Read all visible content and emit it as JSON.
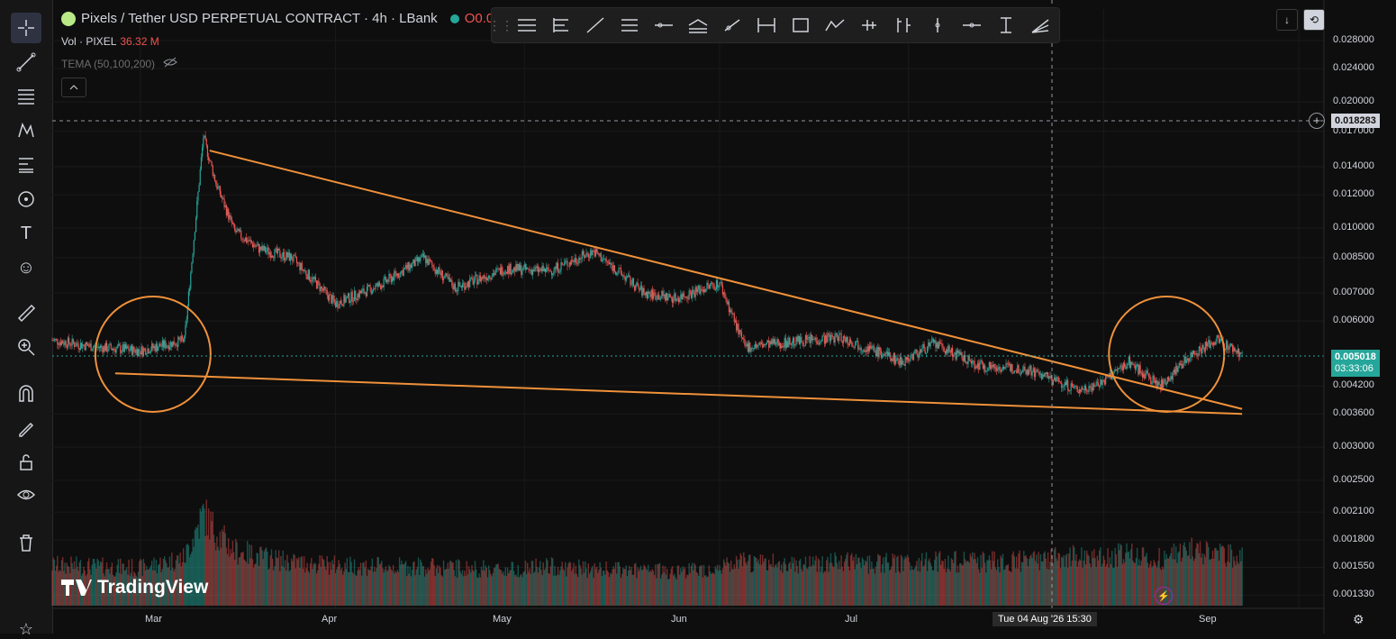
{
  "header": {
    "title": "Pixels / Tether USD PERPETUAL CONTRACT · 4h · LBank",
    "ohlc_prefix": "O0.0"
  },
  "volume_legend": {
    "label": "Vol · PIXEL",
    "value": "36.32 M"
  },
  "indicator_legend": {
    "label": "TEMA (50,100,200)"
  },
  "price_scale": {
    "ticks": [
      "0.028000",
      "0.024000",
      "0.020000",
      "0.017000",
      "0.014000",
      "0.012000",
      "0.010000",
      "0.008500",
      "0.007000",
      "0.006000",
      "0.004200",
      "0.003600",
      "0.003000",
      "0.002500",
      "0.002100",
      "0.001800",
      "0.001550",
      "0.001330"
    ],
    "horizontal_line_price": "0.018283",
    "current_price": "0.005018",
    "countdown": "03:33:06"
  },
  "time_axis": {
    "months": [
      "Mar",
      "Apr",
      "May",
      "Jun",
      "Jul",
      "Sep"
    ],
    "crosshair_date": "Tue 04 Aug '26   15:30"
  },
  "branding": {
    "watermark": "TradingView"
  },
  "colors": {
    "up": "#26a69a",
    "down": "#ef5350",
    "drawing": "#f0913a",
    "background": "#0e0e0e"
  },
  "chart_data": {
    "type": "candlestick",
    "symbol": "PIXEL/USDT",
    "interval": "4h",
    "y_scale": "log",
    "ylim": [
      0.0013,
      0.028
    ],
    "x_range": [
      "2026-02-15",
      "2026-09-05"
    ],
    "series": [
      {
        "name": "PIXEL close",
        "x": [
          "2026-02-15",
          "2026-02-22",
          "2026-03-01",
          "2026-03-08",
          "2026-03-11",
          "2026-03-13",
          "2026-03-16",
          "2026-03-20",
          "2026-03-25",
          "2026-04-01",
          "2026-04-08",
          "2026-04-15",
          "2026-04-20",
          "2026-04-28",
          "2026-05-05",
          "2026-05-12",
          "2026-05-20",
          "2026-05-25",
          "2026-06-01",
          "2026-06-05",
          "2026-06-10",
          "2026-06-20",
          "2026-06-30",
          "2026-07-05",
          "2026-07-12",
          "2026-07-20",
          "2026-07-28",
          "2026-08-01",
          "2026-08-05",
          "2026-08-10",
          "2026-08-15",
          "2026-08-19",
          "2026-08-23"
        ],
        "values": [
          0.0054,
          0.0052,
          0.0051,
          0.0054,
          0.0165,
          0.0128,
          0.0098,
          0.0089,
          0.0085,
          0.0066,
          0.0073,
          0.0085,
          0.0072,
          0.008,
          0.0079,
          0.0088,
          0.007,
          0.0068,
          0.0074,
          0.0052,
          0.0053,
          0.0055,
          0.0048,
          0.0053,
          0.0047,
          0.0046,
          0.0041,
          0.0043,
          0.0048,
          0.0042,
          0.005,
          0.0054,
          0.005
        ]
      }
    ],
    "volume_values": [
      28,
      27,
      26,
      33,
      64,
      51,
      38,
      34,
      30,
      28,
      27,
      27,
      26,
      25,
      27,
      25,
      24,
      24,
      26,
      30,
      29,
      30,
      29,
      31,
      30,
      31,
      34,
      33,
      37,
      32,
      38,
      36,
      34
    ],
    "drawings": [
      {
        "type": "trendline",
        "label": "upper",
        "from": [
          "2026-03-12",
          0.0153
        ],
        "to": [
          "2026-08-23",
          0.0037
        ]
      },
      {
        "type": "trendline",
        "label": "lower",
        "from": [
          "2026-02-25",
          0.0045
        ],
        "to": [
          "2026-08-23",
          0.0036
        ]
      },
      {
        "type": "circle",
        "center": [
          "2026-03-03",
          0.005
        ]
      },
      {
        "type": "circle",
        "center": [
          "2026-08-11",
          0.005
        ]
      },
      {
        "type": "horizontal_line",
        "price": 0.018283
      }
    ]
  }
}
